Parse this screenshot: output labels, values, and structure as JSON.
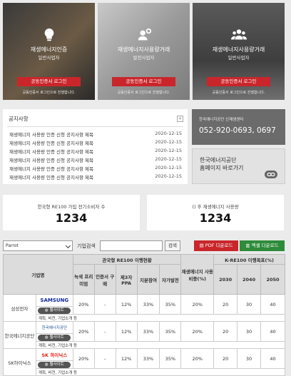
{
  "cards": [
    {
      "title": "재생에너지인증",
      "sub": "일반사업자",
      "button": "공동인증서 로그인",
      "note": "공동인증서 로그인으로 진행합니다.",
      "icon": "lightbulb-icon"
    },
    {
      "title": "재생에너지사용량거래",
      "sub": "발전사업자",
      "button": "공동인증서 로그인",
      "note": "공동인증서 로그인으로 진행합니다.",
      "icon": "gear-worker-icon"
    },
    {
      "title": "재생에너지사용량거래",
      "sub": "일반사업자",
      "button": "공동인증서 로그인",
      "note": "공동인증서 로그인으로 진행합니다.",
      "icon": "group-users-icon"
    }
  ],
  "notice": {
    "title": "공지사항",
    "plus": "+",
    "items": [
      {
        "text": "재생에너지 사용량 인증 신청 공지사항 제목",
        "date": "2020-12-15"
      },
      {
        "text": "재생에너지 사용량 인증 신청 공지사항 제목",
        "date": "2020-12-15"
      },
      {
        "text": "재생에너지 사용량 인증 신청 공지사항 제목",
        "date": "2020-12-15"
      },
      {
        "text": "재생에너지 사용량 인증 신청 공지사항 제목",
        "date": "2020-12-15"
      },
      {
        "text": "재생에너지 사용량 인증 신청 공지사항 제목",
        "date": "2020-12-15"
      },
      {
        "text": "재생에너지 사용량 인증 신청 공지사항 제목",
        "date": "2020-12-15"
      }
    ]
  },
  "phone": {
    "label": "한국에너지공단 신재생센터",
    "number": "052-920-0693, 0697"
  },
  "homepage": {
    "line1": "한국에너지공단",
    "line2": "홈페이지 바로가기"
  },
  "stats": [
    {
      "label": "한국형 RE100 가입 전기소비자 수",
      "value": "1234"
    },
    {
      "label": "() 후 재생에너지 사용량",
      "value": "1234"
    }
  ],
  "filter": {
    "select": "Parrot",
    "search_label": "기업검색",
    "search_btn": "검색",
    "pdf": "PDF 다운로드",
    "excel": "엑셀 다운로드"
  },
  "table": {
    "h_company": "기업명",
    "h_group": "관국형 RE100 이행현황",
    "h_ratio": "재생에너지 사용비중(%)",
    "h_goal": "K-RE100 이행목표(%)",
    "cols": [
      "녹색 프리미엄",
      "인증서 구매",
      "제3자 PPA",
      "지분참여",
      "자가발전"
    ],
    "years": [
      "2030",
      "2040",
      "2050"
    ],
    "rows": [
      {
        "name": "삼성전자",
        "logo": "SAMSUNG",
        "site": "웹사이트",
        "vals": [
          "20%",
          "-",
          "12%",
          "33%",
          "35%",
          "20%",
          "20",
          "30",
          "40"
        ],
        "note": "계획, 비전, 기업소개 등"
      },
      {
        "name": "한국에너지공단",
        "logo": "한국에너지공단",
        "site": "웹사이트",
        "vals": [
          "20%",
          "-",
          "12%",
          "33%",
          "35%",
          "20%",
          "20",
          "30",
          "40"
        ],
        "note": "계획, 비전, 기업소개 등"
      },
      {
        "name": "SK하이닉스",
        "logo": "SK 하이닉스",
        "site": "웹사이트",
        "vals": [
          "20%",
          "-",
          "12%",
          "33%",
          "35%",
          "20%",
          "20",
          "30",
          "40"
        ],
        "note": "계획, 비전, 기업소개 등"
      }
    ]
  },
  "colors": {
    "red": "#c9262b",
    "green": "#2e8b3a"
  }
}
